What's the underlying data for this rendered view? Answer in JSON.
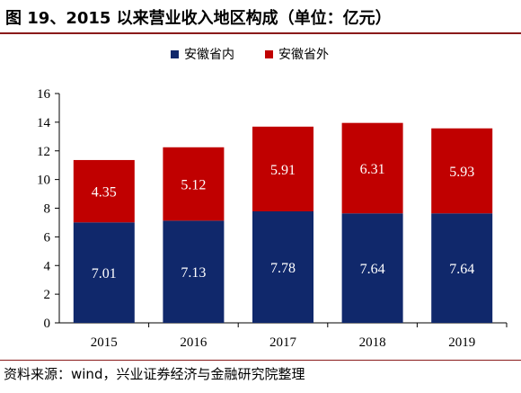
{
  "header": {
    "title": "图 19、2015 以来营业收入地区构成（单位：亿元）"
  },
  "footer": {
    "source": "资料来源：wind，兴业证券经济与金融研究院整理"
  },
  "colors": {
    "series_inner": "#10286b",
    "series_outer": "#c00000",
    "accent_rule": "#8a1a1a"
  },
  "chart_data": {
    "type": "bar",
    "stacked": true,
    "categories": [
      "2015",
      "2016",
      "2017",
      "2018",
      "2019"
    ],
    "series": [
      {
        "name": "安徽省内",
        "values": [
          7.01,
          7.13,
          7.78,
          7.64,
          7.64
        ],
        "color": "#10286b"
      },
      {
        "name": "安徽省外",
        "values": [
          4.35,
          5.12,
          5.91,
          6.31,
          5.93
        ],
        "color": "#c00000"
      }
    ],
    "ylim": [
      0,
      16
    ],
    "yticks": [
      0,
      2,
      4,
      6,
      8,
      10,
      12,
      14,
      16
    ],
    "xlabel": "",
    "ylabel": "",
    "grid": false,
    "legend": "top-center",
    "data_labels": true
  }
}
